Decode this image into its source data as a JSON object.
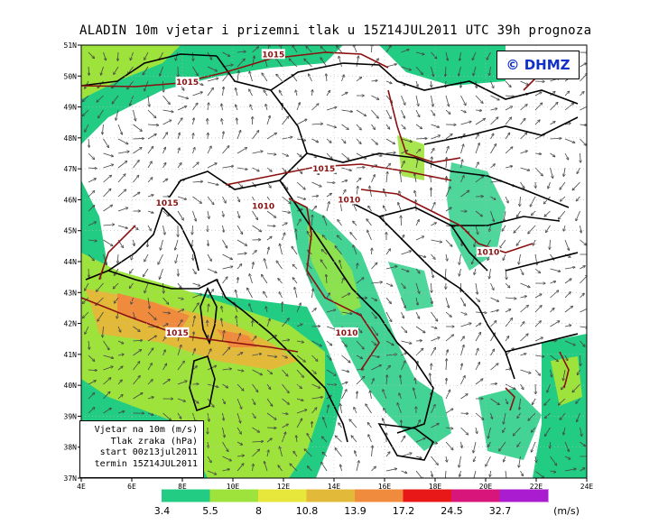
{
  "title": "ALADIN 10m vjetar i prizemni tlak u 15Z14JUL2011 UTC 39h prognoza",
  "logo": "© DHMZ",
  "info_box": [
    "Vjetar na 10m (m/s)",
    "Tlak zraka (hPa)",
    "start 00z13jul2011",
    "termin 15Z14JUL2011"
  ],
  "lat_ticks": [
    "51N",
    "50N",
    "49N",
    "48N",
    "47N",
    "46N",
    "45N",
    "44N",
    "43N",
    "42N",
    "41N",
    "40N",
    "39N",
    "38N",
    "37N"
  ],
  "lon_ticks": [
    "4E",
    "6E",
    "8E",
    "10E",
    "12E",
    "14E",
    "16E",
    "18E",
    "20E",
    "22E",
    "24E"
  ],
  "isobar_labels": [
    {
      "text": "1015",
      "lon": 11.6,
      "lat": 50.7
    },
    {
      "text": "1015",
      "lon": 8.2,
      "lat": 49.8
    },
    {
      "text": "1015",
      "lon": 13.6,
      "lat": 47.0
    },
    {
      "text": "1015",
      "lon": 7.4,
      "lat": 45.9
    },
    {
      "text": "1010",
      "lon": 11.2,
      "lat": 45.8
    },
    {
      "text": "1010",
      "lon": 14.6,
      "lat": 46.0
    },
    {
      "text": "1010",
      "lon": 20.1,
      "lat": 44.3
    },
    {
      "text": "1015",
      "lon": 7.8,
      "lat": 41.7
    },
    {
      "text": "1010",
      "lon": 14.5,
      "lat": 41.7
    }
  ],
  "colorbar": {
    "colors": [
      "#ffffff",
      "#22cc82",
      "#9de33c",
      "#e7e63a",
      "#e3b93a",
      "#f08a3c",
      "#e81818",
      "#d8157a",
      "#a91cd0",
      "#ffffff"
    ],
    "labels": [
      "3.4",
      "5.5",
      "8",
      "10.8",
      "13.9",
      "17.2",
      "24.5",
      "32.7"
    ],
    "unit": "(m/s)"
  },
  "colors": {
    "isobar": "#8b1010",
    "border": "#000000",
    "logo": "#1030c8"
  }
}
